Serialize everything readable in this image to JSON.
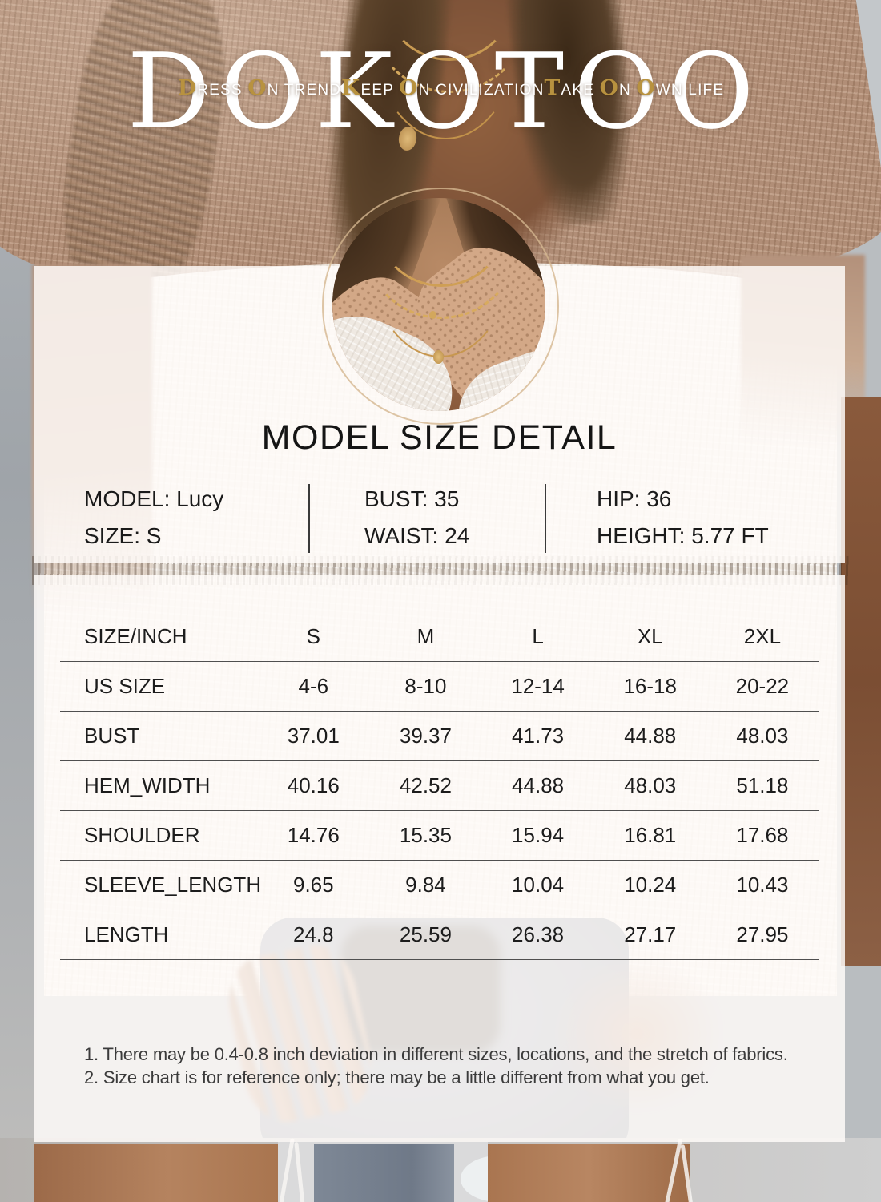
{
  "brand": {
    "logo_text": "DOKOTOO",
    "gold_color": "#b8923f",
    "taglines": [
      {
        "name": "dress-on-trend",
        "segments": [
          {
            "t": "D",
            "gold": true
          },
          {
            "t": "RESS ",
            "gold": false
          },
          {
            "t": "O",
            "gold": true
          },
          {
            "t": "N TREND",
            "gold": false
          }
        ]
      },
      {
        "name": "keep-on-civilization",
        "segments": [
          {
            "t": "K",
            "gold": true
          },
          {
            "t": "EEP ",
            "gold": false
          },
          {
            "t": "O",
            "gold": true
          },
          {
            "t": "N CIVILIZATION",
            "gold": false
          }
        ]
      },
      {
        "name": "take-on-own-life",
        "segments": [
          {
            "t": "T",
            "gold": true
          },
          {
            "t": "AKE ",
            "gold": false
          },
          {
            "t": "O",
            "gold": true
          },
          {
            "t": "N ",
            "gold": false
          },
          {
            "t": "O",
            "gold": true
          },
          {
            "t": "WN LIFE",
            "gold": false
          }
        ]
      }
    ]
  },
  "inset": {
    "description": "necklace-neckline-detail-photo"
  },
  "model_detail": {
    "title": "MODEL SIZE DETAIL",
    "columns": [
      {
        "lines": [
          "MODEL: Lucy",
          "SIZE: S"
        ]
      },
      {
        "lines": [
          "BUST: 35",
          "WAIST: 24"
        ]
      },
      {
        "lines": [
          "HIP: 36",
          "HEIGHT: 5.77 FT"
        ]
      }
    ]
  },
  "size_chart": {
    "header": [
      "SIZE/INCH",
      "S",
      "M",
      "L",
      "XL",
      "2XL"
    ],
    "rows": [
      {
        "label": "US SIZE",
        "values": [
          "4-6",
          "8-10",
          "12-14",
          "16-18",
          "20-22"
        ]
      },
      {
        "label": "BUST",
        "values": [
          "37.01",
          "39.37",
          "41.73",
          "44.88",
          "48.03"
        ]
      },
      {
        "label": "HEM_WIDTH",
        "values": [
          "40.16",
          "42.52",
          "44.88",
          "48.03",
          "51.18"
        ]
      },
      {
        "label": "SHOULDER",
        "values": [
          "14.76",
          "15.35",
          "15.94",
          "16.81",
          "17.68"
        ]
      },
      {
        "label": "SLEEVE_LENGTH",
        "values": [
          "9.65",
          "9.84",
          "10.04",
          "10.24",
          "10.43"
        ]
      },
      {
        "label": "LENGTH",
        "values": [
          "24.8",
          "25.59",
          "26.38",
          "27.17",
          "27.95"
        ]
      }
    ]
  },
  "notes": [
    "1. There may be 0.4-0.8 inch deviation in different sizes, locations, and the stretch of fabrics.",
    "2. Size chart is for reference only; there may be a little different from what you get."
  ]
}
